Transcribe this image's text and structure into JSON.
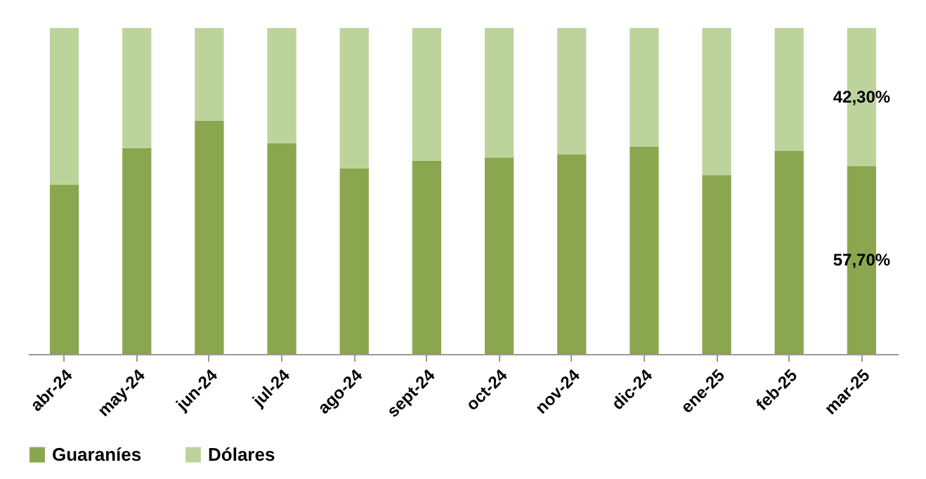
{
  "chart_data": {
    "type": "bar",
    "stacked": true,
    "categories": [
      "abr-24",
      "may-24",
      "jun-24",
      "jul-24",
      "ago-24",
      "sept-24",
      "oct-24",
      "nov-24",
      "dic-24",
      "ene-25",
      "feb-25",
      "mar-25"
    ],
    "series": [
      {
        "name": "Guaraníes",
        "color": "#8aa64e",
        "values": [
          52.0,
          63.2,
          71.6,
          64.7,
          56.9,
          59.3,
          60.3,
          61.3,
          63.7,
          54.9,
          62.3,
          57.7
        ],
        "value_labels": [
          null,
          null,
          null,
          null,
          null,
          null,
          null,
          null,
          null,
          null,
          null,
          "57,70%"
        ]
      },
      {
        "name": "Dólares",
        "color": "#bcd49c",
        "values": [
          48.0,
          36.8,
          28.4,
          35.3,
          43.1,
          40.7,
          39.7,
          38.7,
          36.3,
          45.1,
          37.7,
          42.3
        ],
        "value_labels": [
          null,
          null,
          null,
          null,
          null,
          null,
          null,
          null,
          null,
          null,
          null,
          "42,30%"
        ]
      }
    ],
    "ylim": [
      0,
      100
    ],
    "tick_labels": "x",
    "legend": "bottom"
  }
}
